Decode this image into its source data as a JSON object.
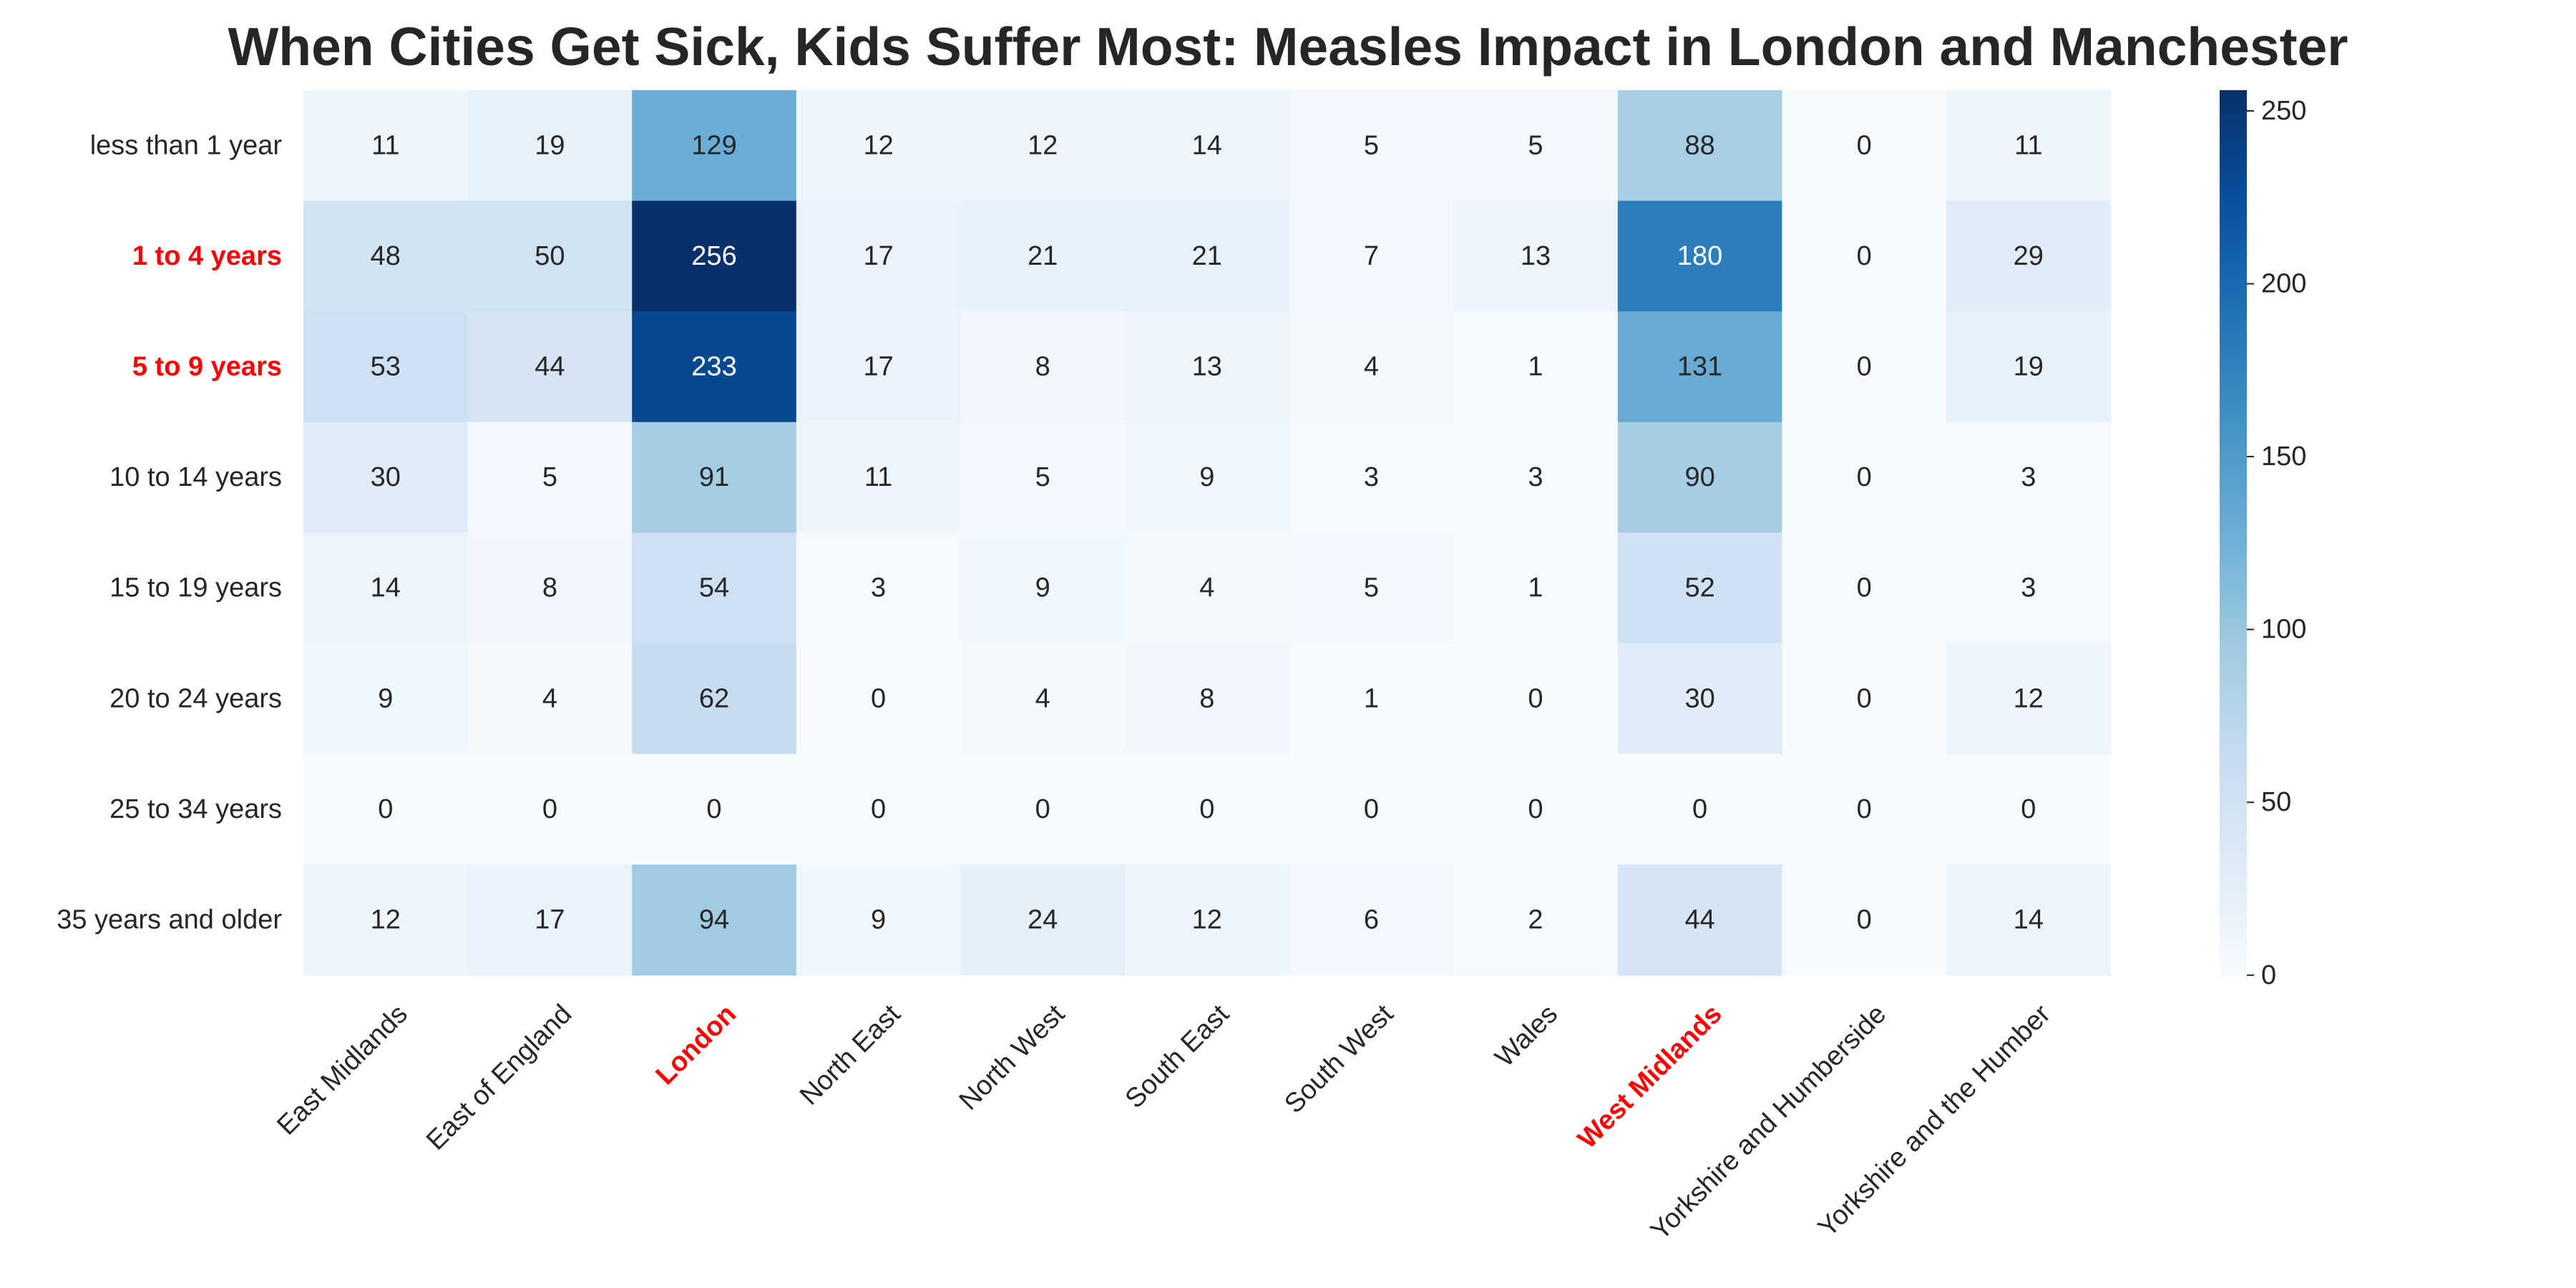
{
  "chart_data": {
    "type": "heatmap",
    "title": "When Cities Get Sick, Kids Suffer Most: Measles Impact in London and Manchester",
    "rows": [
      "less than 1 year",
      "1 to 4 years",
      "5 to 9 years",
      "10 to 14 years",
      "15 to 19 years",
      "20 to 24 years",
      "25 to 34 years",
      "35 years and older"
    ],
    "columns": [
      "East Midlands",
      "East of England",
      "London",
      "North East",
      "North West",
      "South East",
      "South West",
      "Wales",
      "West Midlands",
      "Yorkshire and Humberside",
      "Yorkshire and the Humber"
    ],
    "values": [
      [
        11,
        19,
        129,
        12,
        12,
        14,
        5,
        5,
        88,
        0,
        11
      ],
      [
        48,
        50,
        256,
        17,
        21,
        21,
        7,
        13,
        180,
        0,
        29
      ],
      [
        53,
        44,
        233,
        17,
        8,
        13,
        4,
        1,
        131,
        0,
        19
      ],
      [
        30,
        5,
        91,
        11,
        5,
        9,
        3,
        3,
        90,
        0,
        3
      ],
      [
        14,
        8,
        54,
        3,
        9,
        4,
        5,
        1,
        52,
        0,
        3
      ],
      [
        9,
        4,
        62,
        0,
        4,
        8,
        1,
        0,
        30,
        0,
        12
      ],
      [
        0,
        0,
        0,
        0,
        0,
        0,
        0,
        0,
        0,
        0,
        0
      ],
      [
        12,
        17,
        94,
        9,
        24,
        12,
        6,
        2,
        44,
        0,
        14
      ]
    ],
    "highlighted_rows": [
      "1 to 4 years",
      "5 to 9 years"
    ],
    "highlighted_columns": [
      "London",
      "West Midlands"
    ],
    "highlight_color": "#ff0000",
    "colormap": "Blues",
    "colorbar": {
      "range": [
        0,
        256
      ],
      "ticks": [
        0,
        50,
        100,
        150,
        200,
        250
      ]
    },
    "annotations": "cell values shown"
  }
}
